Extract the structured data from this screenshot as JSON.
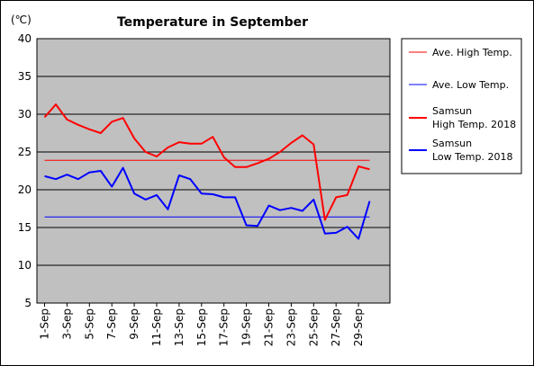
{
  "chart_data": {
    "type": "line",
    "title": "Temperature in September",
    "unit_label": "(℃)",
    "ylim": [
      5,
      40
    ],
    "yticks": [
      "5",
      "10",
      "15",
      "20",
      "25",
      "30",
      "35",
      "40"
    ],
    "x": [
      "1-Sep",
      "2-Sep",
      "3-Sep",
      "4-Sep",
      "5-Sep",
      "6-Sep",
      "7-Sep",
      "8-Sep",
      "9-Sep",
      "10-Sep",
      "11-Sep",
      "12-Sep",
      "13-Sep",
      "14-Sep",
      "15-Sep",
      "16-Sep",
      "17-Sep",
      "18-Sep",
      "19-Sep",
      "20-Sep",
      "21-Sep",
      "22-Sep",
      "23-Sep",
      "24-Sep",
      "25-Sep",
      "26-Sep",
      "27-Sep",
      "28-Sep",
      "29-Sep",
      "30-Sep"
    ],
    "xtick_labels": [
      "1-Sep",
      "3-Sep",
      "5-Sep",
      "7-Sep",
      "9-Sep",
      "11-Sep",
      "13-Sep",
      "15-Sep",
      "17-Sep",
      "19-Sep",
      "21-Sep",
      "23-Sep",
      "25-Sep",
      "27-Sep",
      "29-Sep"
    ],
    "grid": "horizontal",
    "legend_position": "right",
    "colors": {
      "plot_background": "#c0c0c0",
      "high": "#ff0000",
      "low": "#0000ff",
      "grid": "#000000"
    },
    "series": [
      {
        "name": "Ave. High Temp.",
        "color": "#ff0000",
        "width": 1,
        "values": [
          23.9,
          23.9,
          23.9,
          23.9,
          23.9,
          23.9,
          23.9,
          23.9,
          23.9,
          23.9,
          23.9,
          23.9,
          23.9,
          23.9,
          23.9,
          23.9,
          23.9,
          23.9,
          23.9,
          23.9,
          23.9,
          23.9,
          23.9,
          23.9,
          23.9,
          23.9,
          23.9,
          23.9,
          23.9,
          23.9
        ]
      },
      {
        "name": "Ave. Low Temp.",
        "color": "#0000ff",
        "width": 1,
        "values": [
          16.4,
          16.4,
          16.4,
          16.4,
          16.4,
          16.4,
          16.4,
          16.4,
          16.4,
          16.4,
          16.4,
          16.4,
          16.4,
          16.4,
          16.4,
          16.4,
          16.4,
          16.4,
          16.4,
          16.4,
          16.4,
          16.4,
          16.4,
          16.4,
          16.4,
          16.4,
          16.4,
          16.4,
          16.4,
          16.4
        ]
      },
      {
        "name": "Samsun\nHigh Temp. 2018",
        "color": "#ff0000",
        "width": 2,
        "values": [
          29.6,
          31.3,
          29.3,
          28.6,
          28.0,
          27.5,
          29.0,
          29.5,
          26.8,
          25.0,
          24.4,
          25.6,
          26.3,
          26.1,
          26.1,
          27.0,
          24.3,
          23.0,
          23.0,
          23.5,
          24.1,
          25.0,
          26.2,
          27.2,
          26.0,
          16.0,
          19.0,
          19.3,
          23.1,
          22.7
        ]
      },
      {
        "name": "Samsun\nLow Temp. 2018",
        "color": "#0000ff",
        "width": 2,
        "values": [
          21.8,
          21.4,
          22.0,
          21.4,
          22.3,
          22.5,
          20.4,
          22.9,
          19.5,
          18.7,
          19.3,
          17.4,
          21.9,
          21.4,
          19.5,
          19.4,
          19.0,
          19.0,
          15.3,
          15.2,
          17.9,
          17.3,
          17.6,
          17.2,
          18.7,
          14.2,
          14.3,
          15.1,
          13.5,
          18.5
        ]
      }
    ]
  }
}
